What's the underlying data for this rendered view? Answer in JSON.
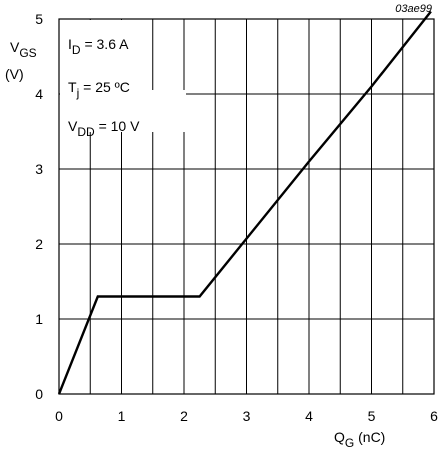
{
  "chart_data": {
    "type": "line",
    "figure_code": "03ae99",
    "xlabel": {
      "main": "Q",
      "sub": "G",
      "suffix": " (nC)"
    },
    "ylabel": {
      "main": "V",
      "sub": "GS",
      "unit": "(V)"
    },
    "xlim": [
      0,
      6
    ],
    "ylim": [
      0,
      5
    ],
    "x_ticks": [
      0,
      1,
      2,
      3,
      4,
      5,
      6
    ],
    "y_ticks": [
      0,
      1,
      2,
      3,
      4,
      5
    ],
    "x_minor_step": 0.5,
    "grid": true,
    "annotations": [
      {
        "main": "I",
        "sub": "D",
        "suffix": " = 3.6 A"
      },
      {
        "main": "T",
        "sub": "j",
        "suffix": " = 25 ºC"
      },
      {
        "main": "V",
        "sub": "DD",
        "suffix": " = 10 V"
      }
    ],
    "series": [
      {
        "points": [
          [
            0,
            0
          ],
          [
            0.62,
            1.3
          ],
          [
            2.25,
            1.3
          ],
          [
            4.0,
            3.1
          ],
          [
            5.0,
            4.1
          ],
          [
            5.95,
            5.1
          ]
        ]
      }
    ]
  }
}
